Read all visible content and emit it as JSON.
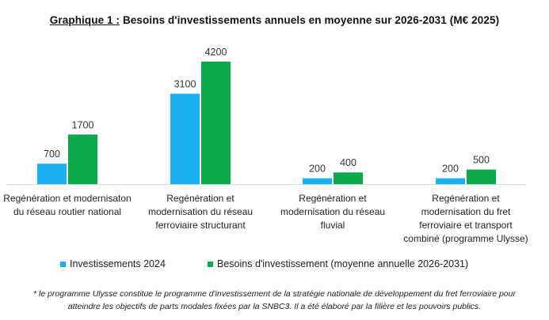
{
  "title": {
    "prefix": "Graphique 1 :",
    "text": " Besoins d'investissements annuels en moyenne sur 2026-2031 (M€ 2025)"
  },
  "chart_data": {
    "type": "bar",
    "categories": [
      [
        "Regénération et modernisaton",
        "du réseau routier national"
      ],
      [
        "Regénération et",
        "modernisation du réseau",
        "ferroviaire structurant"
      ],
      [
        "Regénération et",
        "modernisation du réseau",
        "fluvial"
      ],
      [
        "Regénération et",
        "modernisation du fret",
        "ferroviaire et transport",
        "combiné (programme Ulysse)"
      ]
    ],
    "series": [
      {
        "name": "Investissements 2024",
        "color": "#1ab0ef",
        "values": [
          700,
          3100,
          200,
          200
        ]
      },
      {
        "name": "Besoins d'investissement (moyenne annuelle 2026-2031)",
        "color": "#0ba94a",
        "values": [
          1700,
          4200,
          400,
          500
        ]
      }
    ],
    "ylim": [
      0,
      4200
    ],
    "legend_position": "bottom",
    "grid": false
  },
  "footnote": [
    "* le programme Ulysse constitue le programme d'investissement de la stratégie nationale de développement du fret ferroviaire pour",
    "atteindre les objectifs de parts modales fixées par la SNBC3. Il a été élaboré par la filière et les pouvoirs publics."
  ]
}
